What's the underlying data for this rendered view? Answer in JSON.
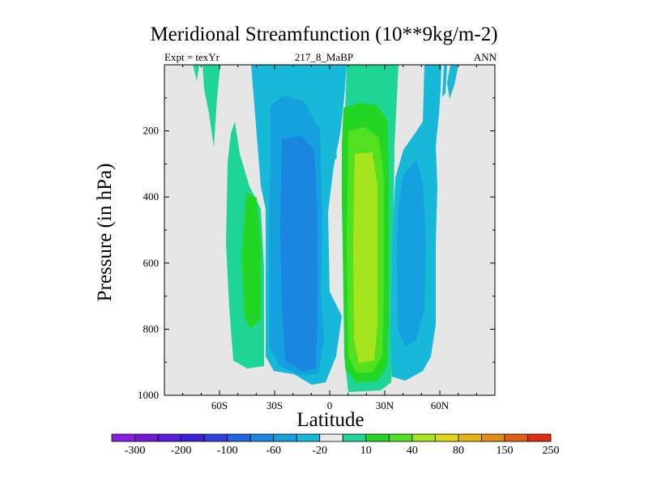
{
  "chart_data": {
    "type": "contour",
    "title": "Meridional Streamfunction (10**9kg/m-2)",
    "subtitle_left": "Expt = texYr",
    "subtitle_center": "217_8_MaBP",
    "subtitle_right": "ANN",
    "xlabel": "Latitude",
    "ylabel": "Pressure (in hPa)",
    "xlim": [
      -90,
      90
    ],
    "ylim": [
      1000,
      0
    ],
    "x_ticks": [
      {
        "value": -60,
        "label": "60S"
      },
      {
        "value": -30,
        "label": "30S"
      },
      {
        "value": 0,
        "label": "0"
      },
      {
        "value": 30,
        "label": "30N"
      },
      {
        "value": 60,
        "label": "60N"
      }
    ],
    "y_ticks": [
      {
        "value": 200,
        "label": "200"
      },
      {
        "value": 400,
        "label": "400"
      },
      {
        "value": 600,
        "label": "600"
      },
      {
        "value": 800,
        "label": "800"
      },
      {
        "value": 1000,
        "label": "1000"
      }
    ],
    "colorbar": {
      "colors": [
        "#8a1ce3",
        "#7418d6",
        "#5b1ae0",
        "#3c1fd9",
        "#2d3fdc",
        "#1f64e0",
        "#1a86e0",
        "#15a0e0",
        "#17b8d8",
        "#eaeaea",
        "#1ed596",
        "#24d624",
        "#53e021",
        "#a6e41e",
        "#e0d81a",
        "#e3b416",
        "#e38c14",
        "#e25c12",
        "#e02c10"
      ],
      "labels": [
        "-300",
        "-200",
        "-100",
        "-60",
        "-20",
        "10",
        "40",
        "80",
        "150",
        "250"
      ]
    },
    "regions": [
      {
        "name": "sh-subtropical-cell-outer",
        "value": 10,
        "color": "#1ed596"
      },
      {
        "name": "sh-subtropical-cell-core",
        "value": 40,
        "color": "#24d624"
      },
      {
        "name": "sh-hadley-cell-outer",
        "value": -20,
        "color": "#17b8d8"
      },
      {
        "name": "sh-hadley-cell-mid",
        "value": -40,
        "color": "#15a0e0"
      },
      {
        "name": "sh-hadley-cell-core",
        "value": -60,
        "color": "#1a86e0"
      },
      {
        "name": "nh-hadley-cell-outer",
        "value": 10,
        "color": "#1ed596"
      },
      {
        "name": "nh-hadley-cell-mid",
        "value": 40,
        "color": "#24d624"
      },
      {
        "name": "nh-hadley-cell-inner",
        "value": 60,
        "color": "#53e021"
      },
      {
        "name": "nh-hadley-cell-core",
        "value": 80,
        "color": "#a6e41e"
      },
      {
        "name": "nh-ferrel-cell-outer",
        "value": -20,
        "color": "#17b8d8"
      },
      {
        "name": "nh-ferrel-cell-core",
        "value": -40,
        "color": "#15a0e0"
      }
    ]
  }
}
